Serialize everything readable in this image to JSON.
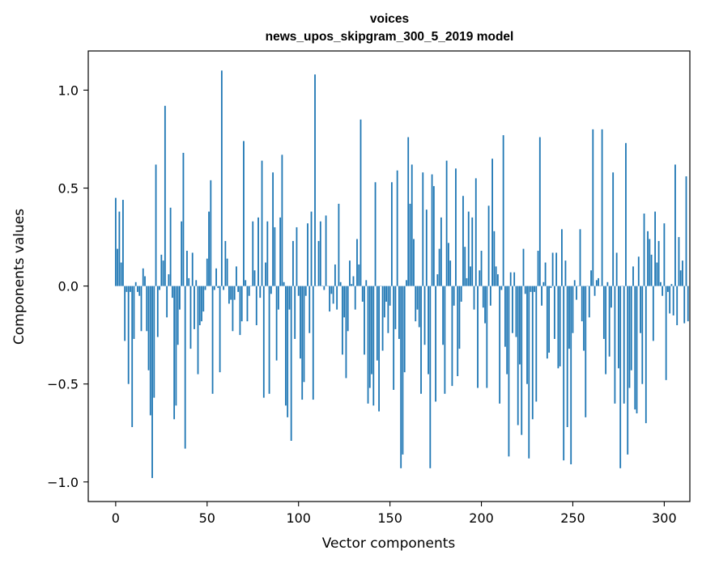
{
  "chart_data": {
    "type": "bar",
    "title": "voices",
    "subtitle": "news_upos_skipgram_300_5_2019 model",
    "xlabel": "Vector components",
    "ylabel": "Components values",
    "xlim": [
      -15,
      314
    ],
    "ylim": [
      -1.1,
      1.2
    ],
    "xticks": [
      0,
      50,
      100,
      150,
      200,
      250,
      300
    ],
    "xtick_labels": [
      "0",
      "50",
      "100",
      "150",
      "200",
      "250",
      "300"
    ],
    "yticks": [
      -1.0,
      -0.5,
      0.0,
      0.5,
      1.0
    ],
    "ytick_labels": [
      "−1.0",
      "−0.5",
      "0.0",
      "0.5",
      "1.0"
    ],
    "grid": false,
    "bar_color": "#1f77b4",
    "values": [
      0.45,
      0.19,
      0.38,
      0.12,
      0.44,
      -0.28,
      -0.03,
      -0.5,
      -0.03,
      -0.72,
      -0.27,
      0.02,
      -0.03,
      -0.05,
      -0.23,
      0.09,
      0.05,
      -0.23,
      -0.43,
      -0.66,
      -0.98,
      -0.57,
      0.62,
      -0.26,
      -0.02,
      0.16,
      0.13,
      0.92,
      -0.16,
      0.06,
      0.4,
      -0.06,
      -0.68,
      -0.61,
      -0.3,
      -0.12,
      0.33,
      0.68,
      -0.83,
      0.18,
      0.04,
      -0.32,
      0.17,
      -0.22,
      0.03,
      -0.45,
      -0.2,
      -0.18,
      -0.13,
      -0.02,
      0.14,
      0.38,
      0.54,
      -0.55,
      -0.02,
      0.09,
      -0.01,
      -0.44,
      1.1,
      -0.02,
      0.23,
      0.14,
      -0.09,
      -0.07,
      -0.23,
      -0.07,
      0.1,
      -0.03,
      -0.25,
      -0.18,
      0.74,
      0.03,
      -0.18,
      -0.05,
      0.0,
      0.33,
      0.08,
      -0.2,
      0.35,
      -0.06,
      0.64,
      -0.57,
      0.12,
      0.33,
      -0.55,
      -0.04,
      0.58,
      0.3,
      -0.38,
      -0.12,
      0.35,
      0.67,
      0.02,
      -0.61,
      -0.67,
      -0.12,
      -0.79,
      0.23,
      -0.27,
      0.3,
      -0.05,
      -0.37,
      -0.58,
      -0.49,
      -0.05,
      0.32,
      -0.24,
      0.38,
      -0.58,
      1.08,
      0.0,
      0.23,
      0.33,
      0.0,
      -0.02,
      0.36,
      0.0,
      -0.13,
      -0.04,
      -0.09,
      0.11,
      -0.12,
      0.42,
      0.02,
      -0.35,
      -0.16,
      -0.47,
      -0.23,
      0.13,
      0.01,
      0.05,
      -0.12,
      0.24,
      0.11,
      0.85,
      -0.08,
      -0.35,
      0.03,
      -0.6,
      -0.52,
      -0.45,
      -0.61,
      0.53,
      -0.38,
      -0.64,
      0.0,
      -0.33,
      -0.16,
      -0.08,
      -0.24,
      -0.1,
      0.53,
      -0.53,
      -0.22,
      0.59,
      -0.27,
      -0.93,
      -0.86,
      -0.44,
      0.03,
      0.76,
      0.42,
      0.62,
      0.24,
      -0.18,
      -0.12,
      -0.21,
      -0.55,
      0.58,
      -0.3,
      0.39,
      -0.45,
      -0.93,
      0.57,
      0.51,
      -0.59,
      0.06,
      0.19,
      0.35,
      -0.3,
      -0.55,
      0.64,
      0.22,
      0.13,
      -0.51,
      -0.1,
      0.6,
      -0.46,
      -0.32,
      -0.08,
      0.46,
      0.2,
      0.04,
      0.38,
      0.1,
      0.35,
      -0.12,
      0.55,
      -0.52,
      0.08,
      0.18,
      -0.11,
      -0.19,
      -0.52,
      0.41,
      -0.1,
      0.65,
      0.28,
      0.1,
      0.06,
      -0.6,
      -0.02,
      0.77,
      -0.31,
      -0.45,
      -0.87,
      0.07,
      -0.24,
      0.07,
      -0.26,
      -0.71,
      -0.4,
      -0.76,
      0.19,
      -0.04,
      -0.5,
      -0.88,
      -0.03,
      -0.68,
      -0.03,
      -0.59,
      0.18,
      0.76,
      -0.1,
      0.02,
      0.12,
      -0.37,
      -0.34,
      -0.01,
      0.17,
      -0.27,
      0.17,
      -0.42,
      -0.41,
      0.29,
      -0.89,
      0.13,
      -0.72,
      -0.32,
      -0.91,
      -0.24,
      0.03,
      -0.07,
      0.0,
      0.29,
      -0.18,
      -0.33,
      -0.67,
      0.0,
      -0.16,
      0.08,
      0.8,
      -0.05,
      0.03,
      0.04,
      0.0,
      0.8,
      -0.27,
      -0.45,
      0.02,
      -0.36,
      -0.11,
      0.58,
      -0.6,
      0.17,
      -0.42,
      -0.93,
      0.0,
      -0.6,
      0.73,
      -0.86,
      -0.52,
      -0.43,
      0.1,
      -0.63,
      -0.65,
      0.15,
      -0.24,
      -0.5,
      0.37,
      -0.7,
      0.28,
      0.24,
      0.16,
      -0.28,
      0.38,
      0.12,
      0.23,
      0.02,
      -0.05,
      0.32,
      -0.48,
      -0.03,
      -0.14,
      0.01,
      -0.15,
      0.62,
      -0.2,
      0.25,
      0.08,
      0.13,
      -0.19,
      0.56,
      -0.18
    ]
  }
}
